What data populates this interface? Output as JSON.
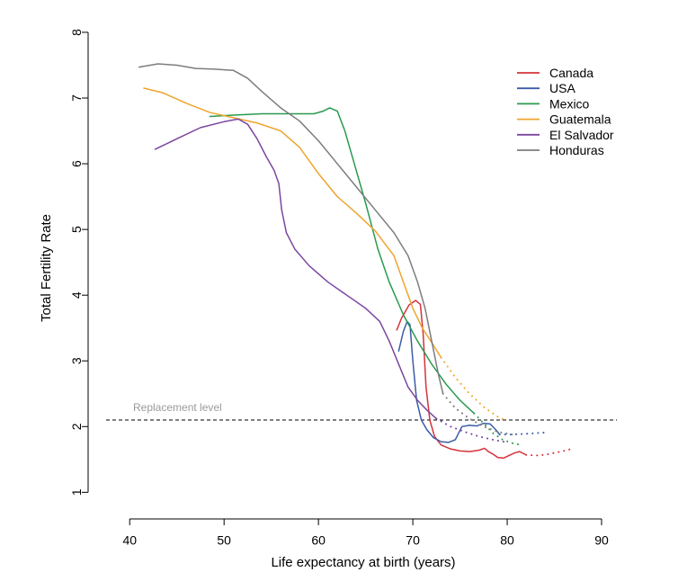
{
  "chart_data": {
    "type": "line",
    "xlabel": "Life expectancy at birth (years)",
    "ylabel": "Total Fertility Rate",
    "xlim": [
      37.5,
      92
    ],
    "ylim": [
      0.8,
      8.3
    ],
    "xticks": [
      40,
      50,
      60,
      70,
      80,
      90
    ],
    "yticks": [
      1,
      2,
      3,
      4,
      5,
      6,
      7,
      8
    ],
    "grid": false,
    "legend_position": "top-right",
    "reference_line": {
      "label": "Replacement level",
      "y": 2.1,
      "style": "dashed",
      "color": "#000000",
      "label_color": "#9a9a9a"
    },
    "series": [
      {
        "name": "Canada",
        "color": "#d6323c",
        "solid": [
          [
            68.3,
            3.47
          ],
          [
            68.8,
            3.65
          ],
          [
            69.6,
            3.85
          ],
          [
            70.3,
            3.92
          ],
          [
            70.8,
            3.86
          ],
          [
            71.1,
            3.4
          ],
          [
            71.4,
            2.6
          ],
          [
            71.8,
            2.1
          ],
          [
            72.3,
            1.85
          ],
          [
            73.0,
            1.72
          ],
          [
            74.0,
            1.66
          ],
          [
            75.0,
            1.63
          ],
          [
            76.0,
            1.62
          ],
          [
            77.0,
            1.64
          ],
          [
            77.6,
            1.67
          ],
          [
            78.0,
            1.62
          ],
          [
            78.5,
            1.58
          ],
          [
            79.0,
            1.53
          ],
          [
            79.6,
            1.52
          ],
          [
            80.2,
            1.56
          ],
          [
            80.8,
            1.6
          ],
          [
            81.3,
            1.62
          ],
          [
            82.0,
            1.57
          ]
        ],
        "dotted": [
          [
            82.0,
            1.57
          ],
          [
            83.0,
            1.56
          ],
          [
            84.0,
            1.57
          ],
          [
            85.0,
            1.6
          ],
          [
            86.0,
            1.63
          ],
          [
            86.8,
            1.66
          ]
        ]
      },
      {
        "name": "USA",
        "color": "#3b5ba9",
        "solid": [
          [
            68.5,
            3.15
          ],
          [
            69.0,
            3.45
          ],
          [
            69.4,
            3.6
          ],
          [
            69.7,
            3.55
          ],
          [
            70.0,
            3.0
          ],
          [
            70.4,
            2.4
          ],
          [
            70.9,
            2.1
          ],
          [
            71.5,
            1.95
          ],
          [
            72.2,
            1.83
          ],
          [
            73.0,
            1.77
          ],
          [
            73.8,
            1.76
          ],
          [
            74.5,
            1.8
          ],
          [
            75.2,
            2.0
          ],
          [
            76.0,
            2.02
          ],
          [
            76.8,
            2.01
          ],
          [
            77.5,
            2.05
          ],
          [
            78.2,
            2.04
          ],
          [
            78.8,
            1.95
          ],
          [
            79.2,
            1.88
          ]
        ],
        "dotted": [
          [
            79.2,
            1.88
          ],
          [
            80.5,
            1.88
          ],
          [
            82.0,
            1.89
          ],
          [
            83.0,
            1.9
          ],
          [
            84.0,
            1.91
          ]
        ]
      },
      {
        "name": "Mexico",
        "color": "#2a9a4e",
        "solid": [
          [
            48.5,
            6.72
          ],
          [
            51.0,
            6.74
          ],
          [
            54.0,
            6.76
          ],
          [
            57.0,
            6.76
          ],
          [
            59.5,
            6.76
          ],
          [
            60.5,
            6.8
          ],
          [
            61.2,
            6.85
          ],
          [
            62.0,
            6.8
          ],
          [
            62.8,
            6.5
          ],
          [
            63.8,
            6.0
          ],
          [
            65.0,
            5.4
          ],
          [
            66.3,
            4.7
          ],
          [
            67.5,
            4.2
          ],
          [
            69.0,
            3.7
          ],
          [
            70.5,
            3.3
          ],
          [
            72.0,
            2.95
          ],
          [
            73.5,
            2.65
          ],
          [
            75.0,
            2.4
          ],
          [
            76.5,
            2.2
          ]
        ],
        "dotted": [
          [
            76.5,
            2.2
          ],
          [
            77.5,
            2.05
          ],
          [
            78.5,
            1.9
          ],
          [
            79.5,
            1.8
          ],
          [
            80.5,
            1.75
          ],
          [
            81.5,
            1.72
          ]
        ]
      },
      {
        "name": "Guatemala",
        "color": "#eea52e",
        "solid": [
          [
            41.5,
            7.15
          ],
          [
            43.5,
            7.08
          ],
          [
            46.0,
            6.92
          ],
          [
            48.5,
            6.78
          ],
          [
            51.0,
            6.7
          ],
          [
            53.5,
            6.62
          ],
          [
            56.0,
            6.5
          ],
          [
            58.0,
            6.25
          ],
          [
            60.0,
            5.85
          ],
          [
            62.0,
            5.5
          ],
          [
            64.0,
            5.25
          ],
          [
            66.0,
            4.98
          ],
          [
            68.0,
            4.6
          ],
          [
            69.0,
            4.2
          ],
          [
            70.0,
            3.8
          ],
          [
            71.0,
            3.5
          ],
          [
            72.0,
            3.28
          ],
          [
            73.0,
            3.05
          ]
        ],
        "dotted": [
          [
            73.0,
            3.05
          ],
          [
            74.5,
            2.75
          ],
          [
            76.0,
            2.5
          ],
          [
            77.5,
            2.3
          ],
          [
            79.0,
            2.15
          ],
          [
            80.0,
            2.08
          ]
        ]
      },
      {
        "name": "El Salvador",
        "color": "#7a47a0",
        "solid": [
          [
            42.7,
            6.22
          ],
          [
            45.0,
            6.38
          ],
          [
            47.5,
            6.55
          ],
          [
            50.0,
            6.64
          ],
          [
            51.5,
            6.68
          ],
          [
            52.5,
            6.6
          ],
          [
            53.5,
            6.38
          ],
          [
            54.5,
            6.1
          ],
          [
            55.3,
            5.9
          ],
          [
            55.8,
            5.7
          ],
          [
            56.1,
            5.3
          ],
          [
            56.6,
            4.95
          ],
          [
            57.5,
            4.7
          ],
          [
            59.0,
            4.45
          ],
          [
            61.0,
            4.2
          ],
          [
            63.0,
            4.0
          ],
          [
            65.0,
            3.8
          ],
          [
            66.5,
            3.6
          ],
          [
            67.5,
            3.3
          ],
          [
            68.5,
            2.95
          ],
          [
            69.5,
            2.6
          ],
          [
            70.5,
            2.4
          ],
          [
            71.5,
            2.25
          ],
          [
            72.5,
            2.12
          ]
        ],
        "dotted": [
          [
            72.5,
            2.12
          ],
          [
            74.0,
            2.0
          ],
          [
            75.5,
            1.92
          ],
          [
            77.0,
            1.85
          ],
          [
            78.5,
            1.8
          ],
          [
            80.0,
            1.76
          ]
        ]
      },
      {
        "name": "Honduras",
        "color": "#7d7d7d",
        "solid": [
          [
            41.0,
            7.47
          ],
          [
            43.0,
            7.52
          ],
          [
            45.0,
            7.5
          ],
          [
            47.0,
            7.45
          ],
          [
            49.0,
            7.44
          ],
          [
            51.0,
            7.42
          ],
          [
            52.5,
            7.3
          ],
          [
            54.0,
            7.1
          ],
          [
            56.0,
            6.85
          ],
          [
            58.0,
            6.65
          ],
          [
            60.0,
            6.35
          ],
          [
            62.0,
            6.0
          ],
          [
            64.0,
            5.65
          ],
          [
            66.0,
            5.3
          ],
          [
            68.0,
            4.95
          ],
          [
            69.5,
            4.6
          ],
          [
            70.5,
            4.2
          ],
          [
            71.3,
            3.8
          ],
          [
            72.0,
            3.3
          ],
          [
            72.7,
            2.8
          ],
          [
            73.2,
            2.5
          ]
        ],
        "dotted": [
          [
            73.2,
            2.5
          ],
          [
            74.5,
            2.28
          ],
          [
            76.0,
            2.12
          ],
          [
            77.5,
            2.0
          ],
          [
            79.0,
            1.92
          ],
          [
            80.5,
            1.88
          ]
        ]
      }
    ]
  }
}
